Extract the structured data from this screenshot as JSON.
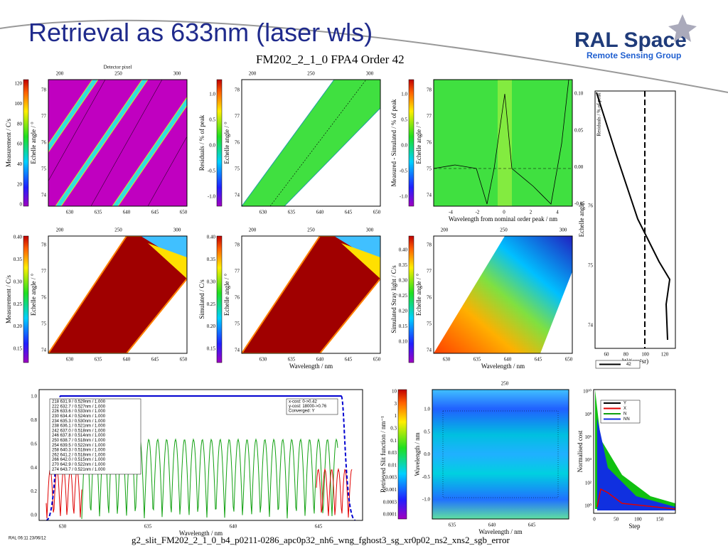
{
  "header": {
    "title": "Retrieval as 633nm (laser wls)",
    "logo": "RAL Space",
    "logo_subtitle": "Remote Sensing Group",
    "plot_title": "FM202_2_1_0 FPA4 Order 42"
  },
  "panels": [
    {
      "kind": "laser",
      "cbar_label": "Measurement / C/s",
      "cbar_ticks": [
        "0",
        "20",
        "40",
        "60",
        "80",
        "100",
        "120"
      ],
      "y_label": "Echelle angle / °",
      "y_ticks": [
        "74",
        "75",
        "76",
        "77",
        "78"
      ],
      "x_ticks": [
        "630",
        "635",
        "640",
        "645",
        "650"
      ],
      "top_label": "Detector pixel",
      "top_ticks": [
        "200",
        "250",
        "300"
      ]
    },
    {
      "kind": "resid",
      "cbar_label": "Residuals / % of peak",
      "cbar_ticks": [
        "-1.0",
        "-0.5",
        "0.0",
        "0.5",
        "1.0"
      ],
      "y_label": "Echelle angle / °",
      "y_ticks": [
        "74",
        "75",
        "76",
        "77",
        "78"
      ],
      "x_ticks": [
        "630",
        "635",
        "640",
        "645",
        "650"
      ],
      "top_ticks": [
        "200",
        "250",
        "300"
      ]
    },
    {
      "kind": "resid2",
      "cbar_label": "Measured - Simulated / % of peak",
      "cbar_ticks": [
        "-1.0",
        "-0.5",
        "0.0",
        "0.5",
        "1.0"
      ],
      "y_label": "Echelle angle / °",
      "y_ticks": [
        "74",
        "75",
        "76",
        "77",
        "78"
      ],
      "x_label": "Wavelength from nominal order peak / nm",
      "x_ticks": [
        "-4",
        "-2",
        "0",
        "2",
        "4"
      ],
      "right_label": "Residuals / % of peak",
      "right_ticks": [
        "-0.05",
        "0.00",
        "0.05",
        "0.10"
      ]
    },
    {
      "kind": "profile",
      "y_label": "Echelle angle",
      "y_ticks": [
        "74",
        "75",
        "76"
      ],
      "x_label": "W/(cm²sr)",
      "x_ticks": [
        "60",
        "80",
        "100",
        "120"
      ],
      "legend": [
        "42"
      ]
    },
    {
      "kind": "meas",
      "cbar_label": "Measurement / C/s",
      "cbar_ticks": [
        "0.15",
        "0.20",
        "0.25",
        "0.30",
        "0.35",
        "0.40"
      ],
      "y_label": "Echelle angle / °",
      "y_ticks": [
        "74",
        "75",
        "76",
        "77",
        "78"
      ],
      "x_ticks": [
        "630",
        "635",
        "640",
        "645",
        "650"
      ],
      "top_ticks": [
        "200",
        "250",
        "300"
      ]
    },
    {
      "kind": "meas",
      "cbar_label": "Simulated / C/s",
      "cbar_ticks": [
        "0.15",
        "0.20",
        "0.25",
        "0.30",
        "0.35",
        "0.40"
      ],
      "y_label": "Echelle angle / °",
      "y_ticks": [
        "74",
        "75",
        "76",
        "77",
        "78"
      ],
      "x_label": "Wavelength / nm",
      "x_ticks": [
        "630",
        "635",
        "640",
        "645",
        "650"
      ],
      "top_ticks": [
        "200",
        "250",
        "300"
      ]
    },
    {
      "kind": "stray",
      "cbar_label": "Simulated Stray light / C/s",
      "cbar_ticks": [
        "0.10",
        "0.15",
        "0.20",
        "0.25",
        "0.30",
        "0.35",
        "0.40"
      ],
      "y_label": "Echelle angle / °",
      "y_ticks": [
        "74",
        "75",
        "76",
        "77",
        "78"
      ],
      "x_label": "Wavelength / nm",
      "x_ticks": [
        "630",
        "635",
        "640",
        "645",
        "650"
      ],
      "top_ticks": [
        "200",
        "250",
        "300"
      ]
    },
    {
      "kind": "slit",
      "y_ticks": [
        "0.0",
        "0.2",
        "0.4",
        "0.6",
        "0.8",
        "1.0"
      ],
      "x_label": "Wavelength / nm",
      "x_ticks": [
        "630",
        "635",
        "640",
        "645"
      ],
      "legend": [
        "218 631.9 / 0.529nm / 1.000",
        "222 632.7 / 0.527nm / 1.000",
        "226 633.6 / 0.533nm / 1.000",
        "230 634.4 / 0.524nm / 1.000",
        "234 635.3 / 0.530nm / 1.000",
        "238 636.1 / 0.521nm / 1.000",
        "242 637.0 / 0.518nm / 1.000",
        "246 637.8 / 0.514nm / 1.000",
        "250 638.7 / 0.518nm / 1.000",
        "254 639.5 / 0.522nm / 1.000",
        "258 640.3 / 0.518nm / 1.000",
        "262 641.2 / 0.518nm / 1.000",
        "266 642.0 / 0.515nm / 1.000",
        "270 642.9 / 0.522nm / 1.000",
        "274 643.7 / 0.521nm / 1.000"
      ],
      "notes": [
        "x-cost: 0->0.42",
        "y-cost: 18000->0.76",
        "Converged: Y"
      ]
    },
    {
      "kind": "slitfn",
      "cbar_label": "Retrieved Slit function / nm⁻¹",
      "cbar_ticks": [
        "0.0001",
        "0.0003",
        "0.001",
        "0.003",
        "0.01",
        "0.03",
        "0.1",
        "0.3",
        "1",
        "3",
        "10"
      ],
      "y_label": "Wavelength / nm",
      "y_ticks": [
        "-1.0",
        "-0.5",
        "0.0",
        "0.5",
        "1.0"
      ],
      "x_label": "Wavelength / nm",
      "x_ticks": [
        "635",
        "640",
        "645"
      ],
      "top_ticks": [
        "250"
      ]
    },
    {
      "kind": "cost",
      "y_label": "Normalised cost",
      "y_ticks": [
        "10⁰",
        "10²",
        "10⁴",
        "10⁶",
        "10⁸",
        "10¹⁰"
      ],
      "x_label": "Step",
      "x_ticks": [
        "0",
        "50",
        "100",
        "150"
      ],
      "legend": [
        "Y",
        "X",
        "N",
        "NN"
      ]
    }
  ],
  "footer": {
    "filename": "g2_slit_FM202_2_1_0_b4_p0211-0286_apc0p32_nh6_wng_fghost3_sg_xr0p02_ns2_xns2_sgb_error",
    "stamp": "RAL 06:11 23/06/12"
  }
}
